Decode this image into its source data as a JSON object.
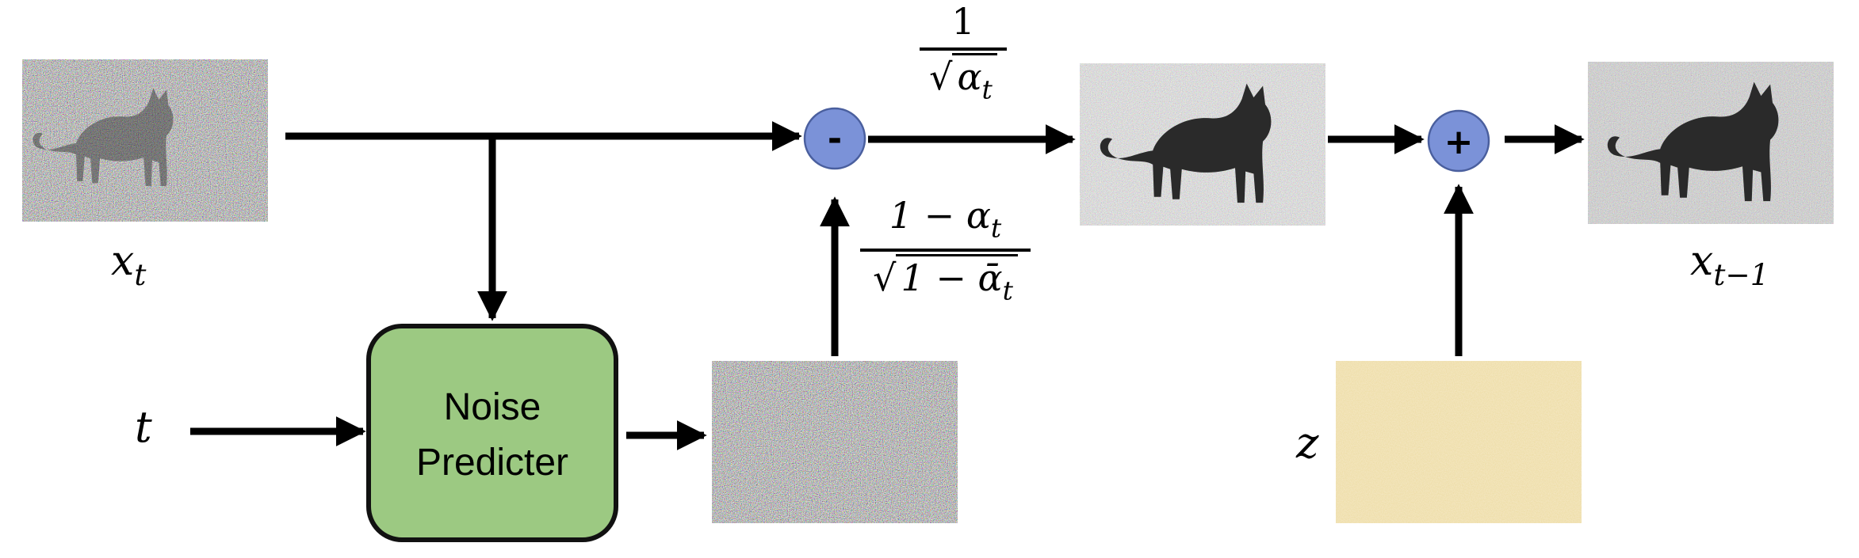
{
  "labels": {
    "x_t": {
      "base": "x",
      "sub": "t"
    },
    "x_t_minus_1": {
      "base": "x",
      "sub": "t−1"
    },
    "t": "t",
    "z": "z"
  },
  "noise_predictor": {
    "line1": "Noise",
    "line2": "Predicter",
    "fill": "#9cc982",
    "stroke": "#111111"
  },
  "ops": {
    "minus": "-",
    "plus": "+",
    "fill": "#7b92d8"
  },
  "formulas": {
    "scale": {
      "numerator": "1",
      "radicand_base": "α",
      "radicand_sub": "t"
    },
    "noise_coeff": {
      "numerator": "1 − α",
      "numerator_sub": "t",
      "radicand": "1 − ᾱ",
      "radicand_sub": "t"
    }
  },
  "colors": {
    "arrow": "#000000",
    "noise_z": "#d8b55a"
  }
}
